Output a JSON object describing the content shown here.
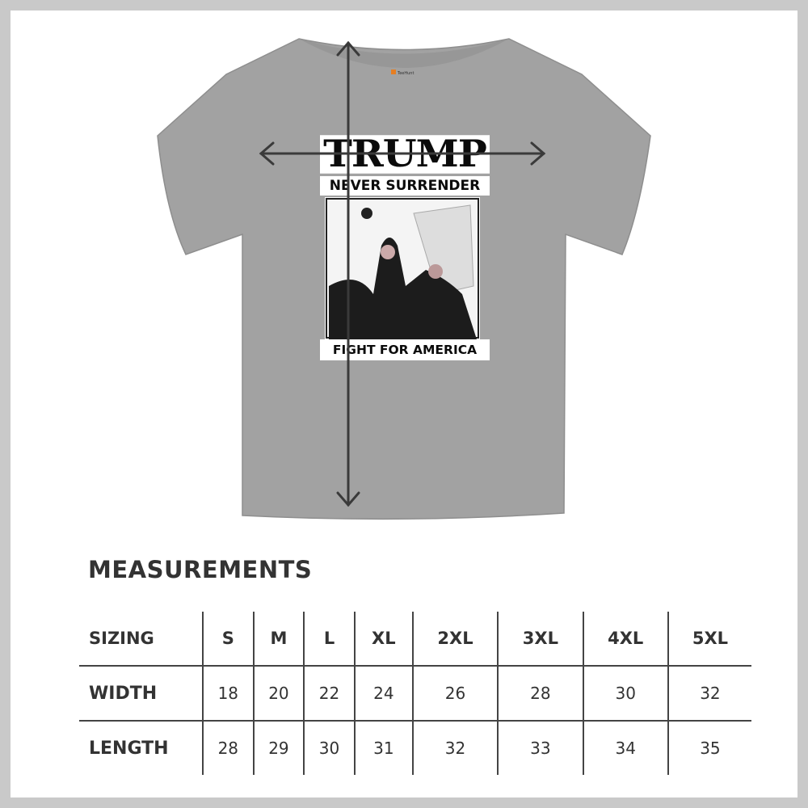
{
  "shirt": {
    "color": "#a2a2a2",
    "label_brand": "TeeHunt",
    "print": {
      "title": "TRUMP",
      "subtitle": "NEVER SURRENDER",
      "bottom_text": "FIGHT FOR AMERICA"
    },
    "measure_arrows": [
      "width-arrow",
      "length-arrow"
    ]
  },
  "measurements": {
    "heading": "MEASUREMENTS",
    "header": {
      "label": "SIZING",
      "sizes": [
        "S",
        "M",
        "L",
        "XL",
        "2XL",
        "3XL",
        "4XL",
        "5XL"
      ]
    },
    "rows": [
      {
        "label": "WIDTH",
        "values": [
          "18",
          "20",
          "22",
          "24",
          "26",
          "28",
          "30",
          "32"
        ]
      },
      {
        "label": "LENGTH",
        "values": [
          "28",
          "29",
          "30",
          "31",
          "32",
          "33",
          "34",
          "35"
        ]
      }
    ]
  }
}
